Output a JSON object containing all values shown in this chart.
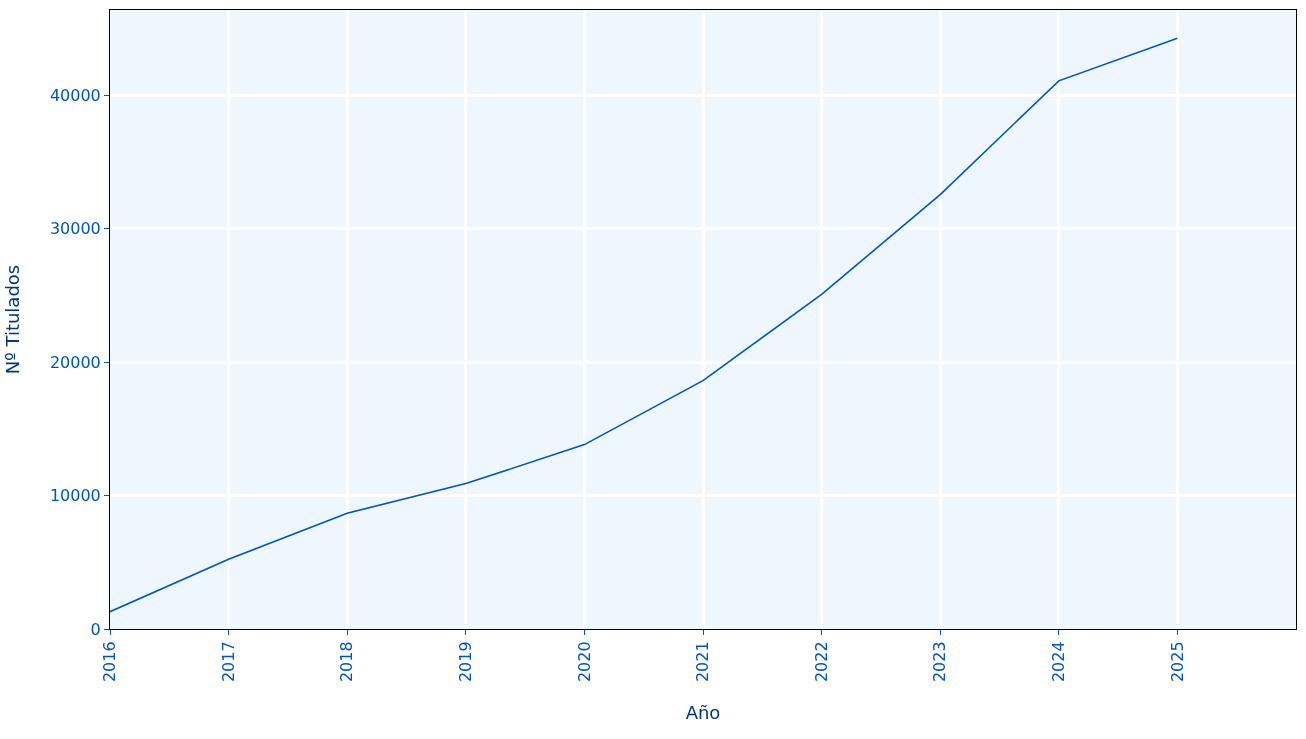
{
  "chart_data": {
    "type": "line",
    "xlabel": "Año",
    "ylabel": "Nº Titulados",
    "x": [
      2016,
      2017,
      2018,
      2019,
      2020,
      2021,
      2022,
      2023,
      2024,
      2025
    ],
    "series": [
      {
        "color": "#0055bb",
        "values": [
          1300,
          5230,
          8680,
          10900,
          13820,
          18620,
          25080,
          32560,
          41090,
          44290
        ]
      }
    ],
    "xlim": [
      2016,
      2026
    ],
    "xticks": [
      2016,
      2017,
      2018,
      2019,
      2020,
      2021,
      2022,
      2023,
      2024,
      2025
    ],
    "ylim": [
      0,
      46400
    ],
    "yticks": [
      0,
      10000,
      20000,
      30000,
      40000
    ],
    "grid": true,
    "marker": "none",
    "line_style": "solid"
  }
}
